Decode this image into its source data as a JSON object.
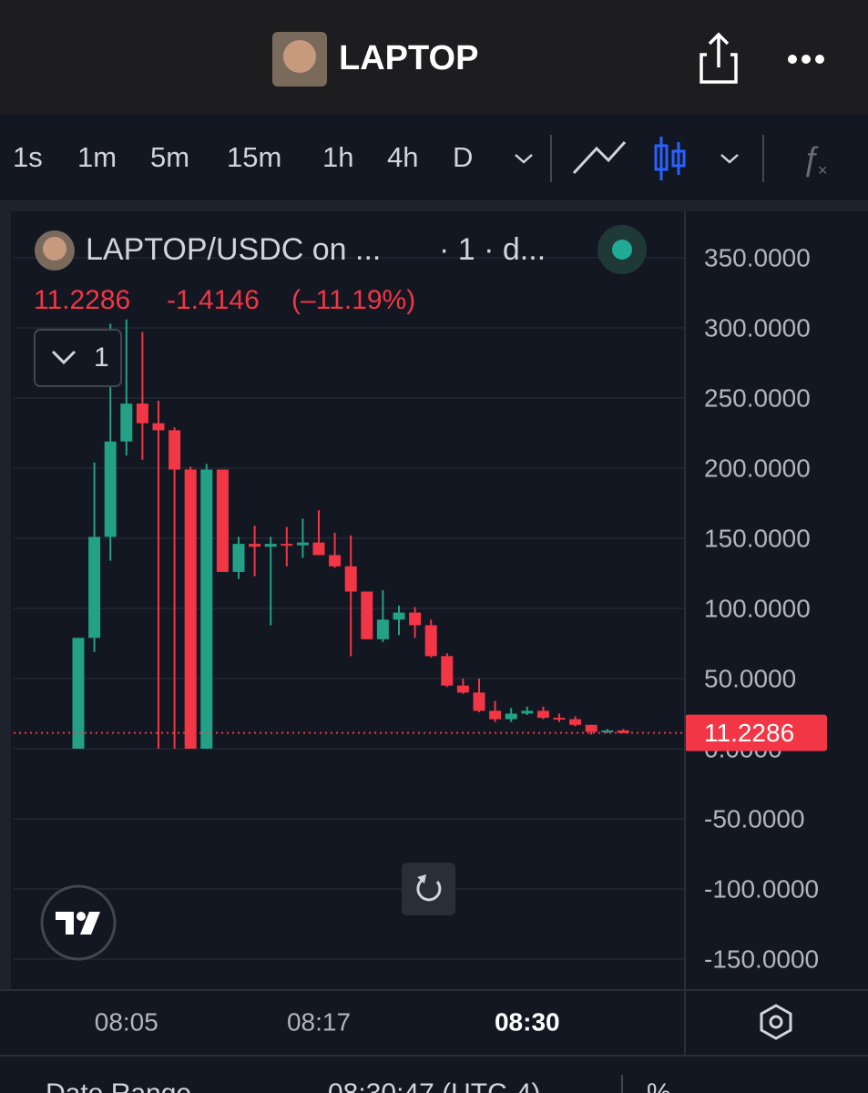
{
  "header": {
    "title": "LAPTOP"
  },
  "toolbar": {
    "intervals": [
      "1s",
      "1m",
      "5m",
      "15m",
      "1h",
      "4h",
      "D"
    ],
    "active": "1m"
  },
  "legend": {
    "symbol": "LAPTOP/USDC on ...",
    "interval": "· 1 · d...",
    "change": "-1.4146",
    "change_pct": "(–11.19%)",
    "pane_count": "1"
  },
  "chart_data": {
    "type": "candlestick",
    "categories": [
      null,
      null,
      null,
      "08:05",
      null,
      null,
      null,
      null,
      null,
      null,
      null,
      null,
      null,
      null,
      null,
      "08:17",
      null,
      null,
      null,
      null,
      null,
      null,
      null,
      null,
      null,
      null,
      null,
      null,
      "08:30",
      null,
      null,
      null,
      null,
      null,
      null
    ],
    "open": [
      0,
      79,
      151,
      219,
      246,
      232,
      227,
      199,
      0,
      199,
      126,
      146,
      144,
      146,
      145,
      147,
      138,
      130,
      112,
      78,
      92,
      97,
      88,
      66,
      45,
      40,
      27,
      21,
      25,
      27,
      22,
      21,
      17,
      12,
      13
    ],
    "high": [
      79,
      204,
      303,
      306,
      297,
      248,
      229,
      201,
      203,
      199,
      151,
      159,
      151,
      158,
      164,
      170,
      154,
      152,
      112,
      113,
      102,
      101,
      92,
      68,
      50,
      50,
      34,
      29,
      30,
      30,
      25,
      23,
      17,
      14,
      14
    ],
    "low": [
      0,
      69,
      134,
      209,
      206,
      0,
      0,
      0,
      0,
      126,
      121,
      123,
      88,
      130,
      136,
      138,
      129,
      66,
      78,
      76,
      81,
      79,
      65,
      44,
      39,
      26,
      19,
      19,
      24,
      21,
      19,
      16,
      10,
      11,
      11
    ],
    "close": [
      79,
      151,
      219,
      246,
      232,
      227,
      199,
      0,
      199,
      126,
      146,
      144,
      146,
      145,
      147,
      138,
      130,
      112,
      78,
      92,
      97,
      88,
      66,
      45,
      40,
      27,
      21,
      25,
      27,
      22,
      21,
      17,
      12,
      13,
      11.2286
    ],
    "up_color": "#22a186",
    "down_color": "#f23645",
    "last_price": 11.2286,
    "ylim": [
      -172.1,
      383.1
    ],
    "yticks": [
      {
        "value": -150,
        "label": "-150.0000"
      },
      {
        "value": -100,
        "label": "-100.0000"
      },
      {
        "value": -50,
        "label": "-50.0000"
      },
      {
        "value": 0,
        "label": "0.0000"
      },
      {
        "value": 50,
        "label": "50.0000"
      },
      {
        "value": 100,
        "label": "100.0000"
      },
      {
        "value": 150,
        "label": "150.0000"
      },
      {
        "value": 200,
        "label": "200.0000"
      },
      {
        "value": 250,
        "label": "250.0000"
      },
      {
        "value": 300,
        "label": "300.0000"
      },
      {
        "value": 350,
        "label": "350.0000"
      }
    ],
    "grid": true,
    "bold_category": "08:30"
  },
  "footer": {
    "range": "Date Range",
    "time": "08:30:47 (UTC-4)",
    "percent": "%"
  }
}
